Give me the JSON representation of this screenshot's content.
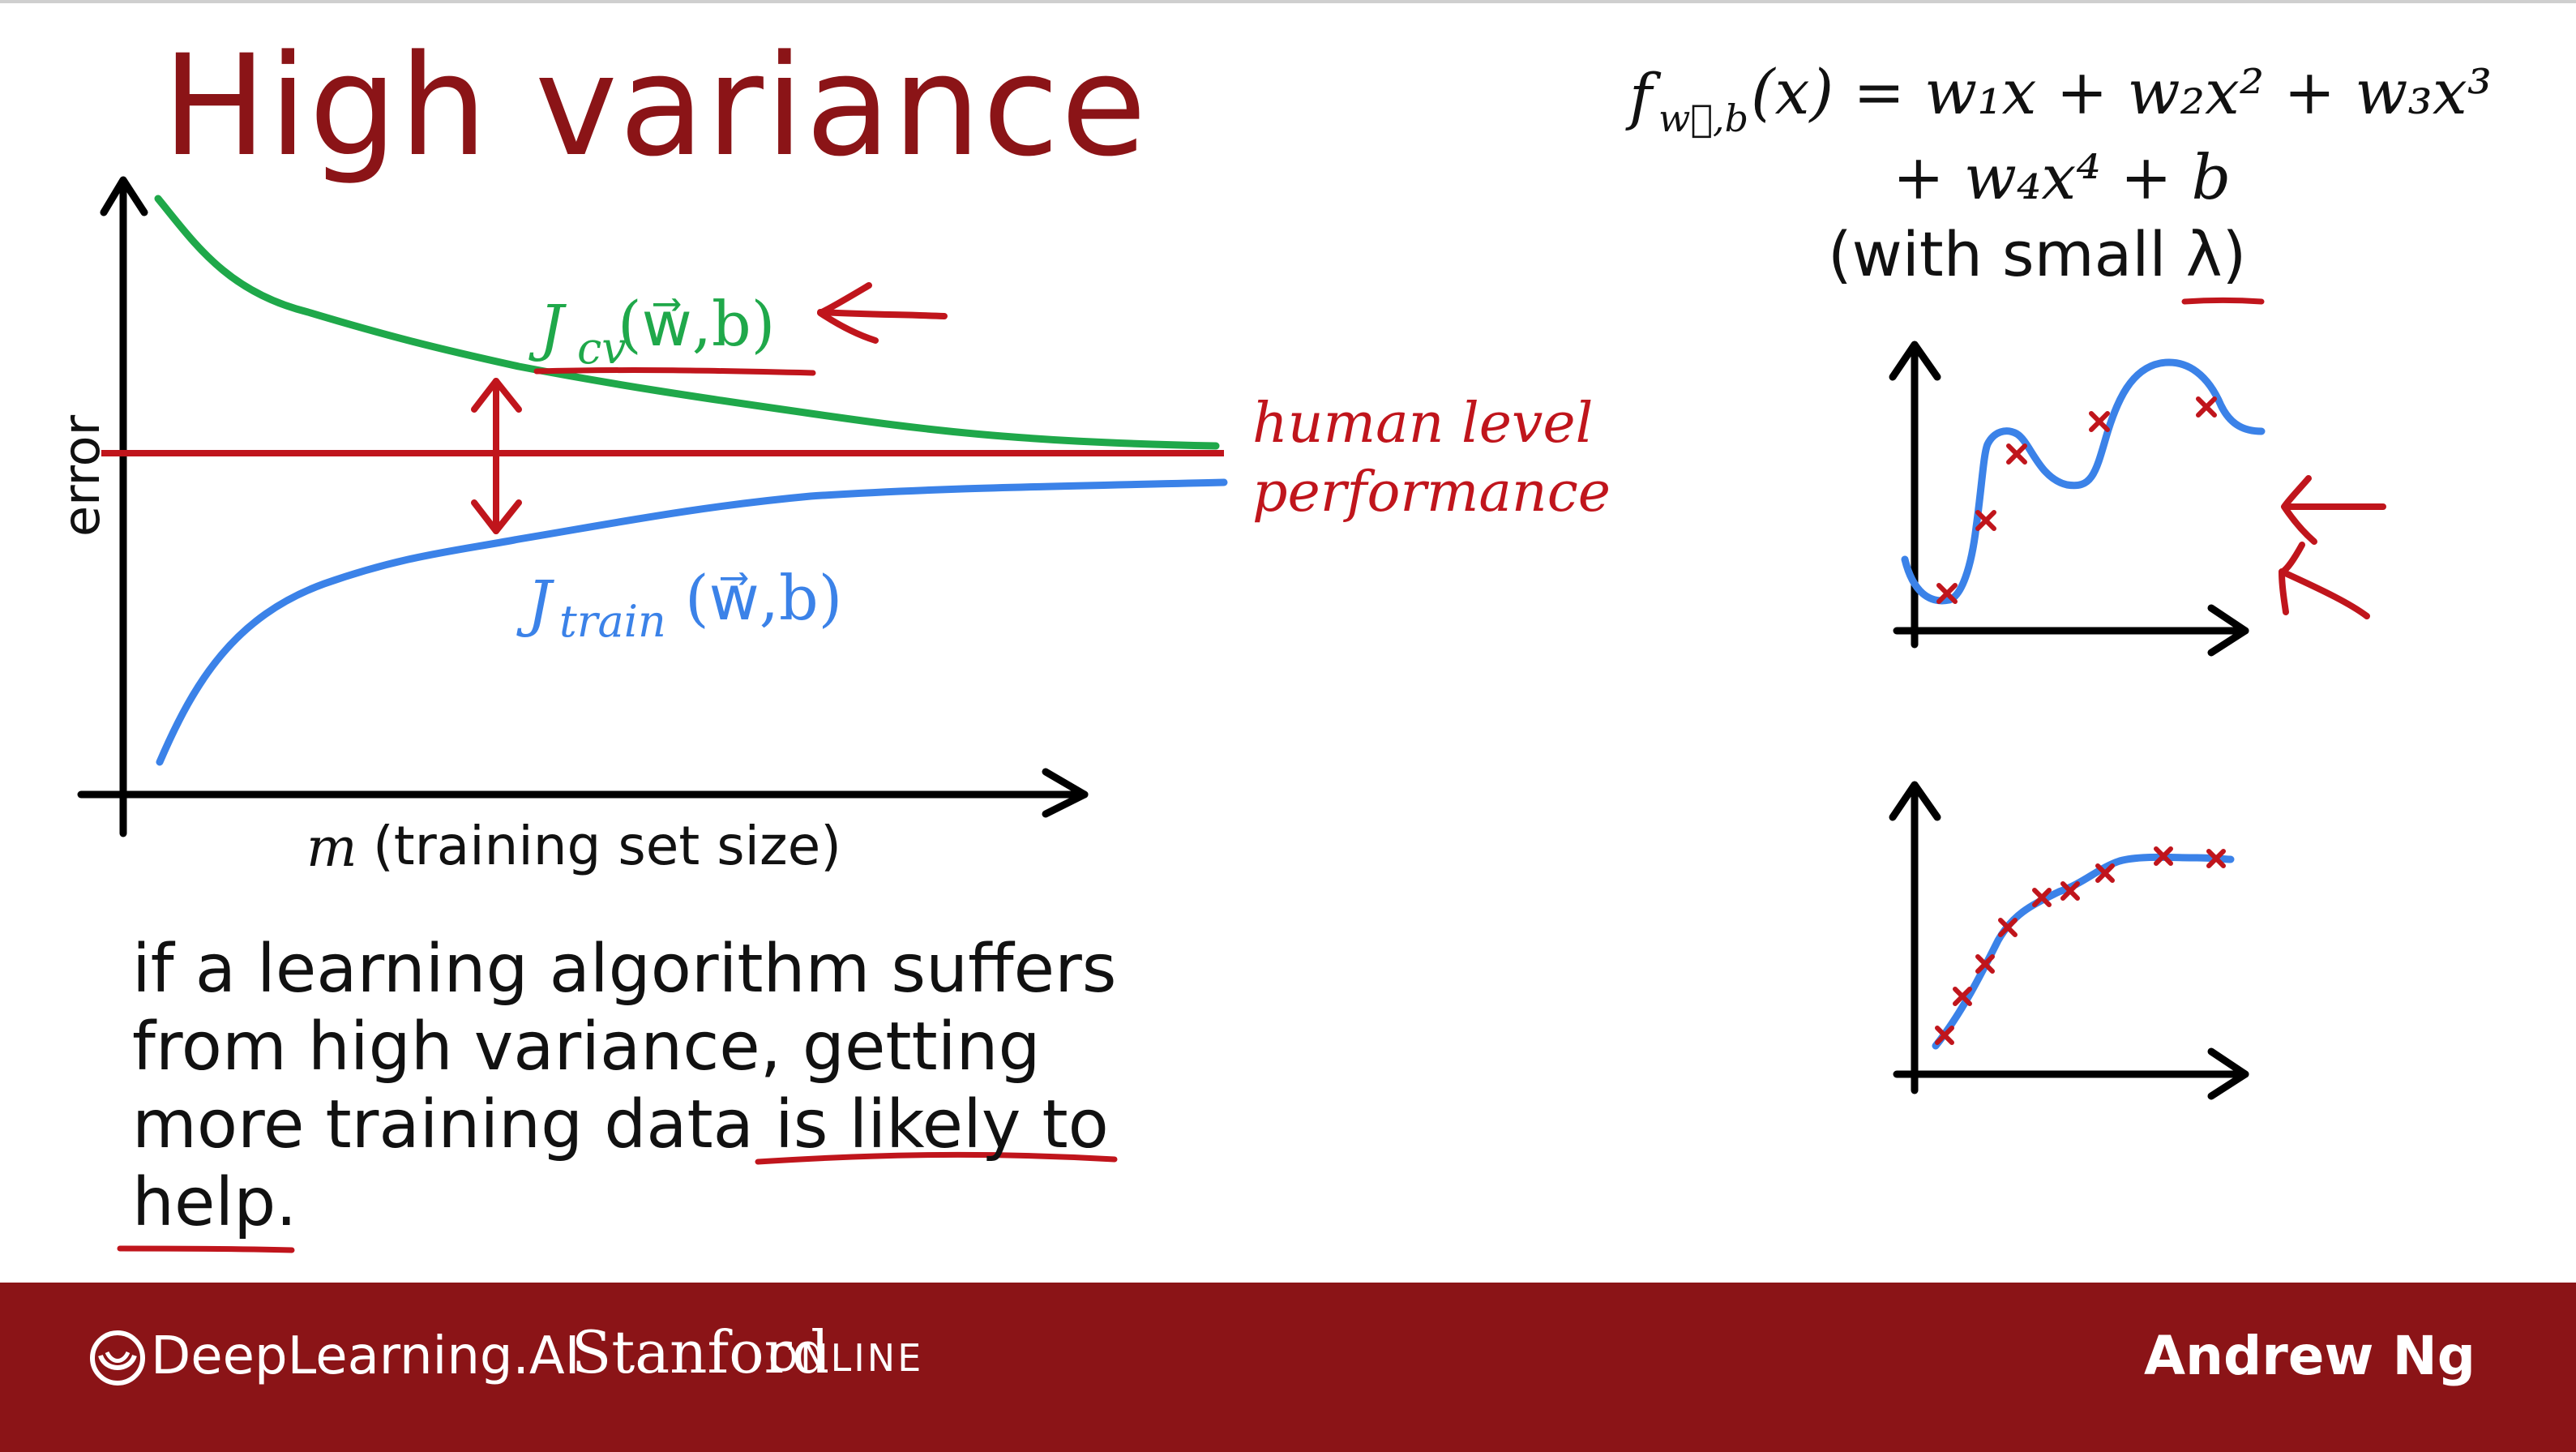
{
  "slide": {
    "title": "High variance",
    "paragraph_lines": [
      "if a learning algorithm suffers",
      "from high variance, getting",
      "more training data is likely to",
      "help."
    ]
  },
  "learning_curve": {
    "y_axis_label": "error",
    "x_axis_label_var": "m",
    "x_axis_label_text": "(training set size)",
    "cv_label": "J",
    "cv_sub": "cv",
    "cv_args": "(w⃗,b)",
    "train_label": "J",
    "train_sub": "train",
    "train_args": "(w⃗,b)",
    "human_level_line1": "human level",
    "human_level_line2": "performance"
  },
  "formula": {
    "line1": "f",
    "line1_sub": "w⃗,b",
    "line1_rest": "(x) = w₁x + w₂x² + w₃x³",
    "line2": "+ w₄x⁴ + b",
    "line3": "(with small λ)"
  },
  "footer": {
    "brand": "DeepLearning.AI",
    "partner": "Stanford",
    "partner_suffix": "ONLINE",
    "author": "Andrew Ng"
  },
  "colors": {
    "title": "#8b1417",
    "annotation_red": "#c0151c",
    "cv_green": "#1fa84a",
    "train_blue": "#3b82e8",
    "footer_bg": "#8b1417"
  }
}
